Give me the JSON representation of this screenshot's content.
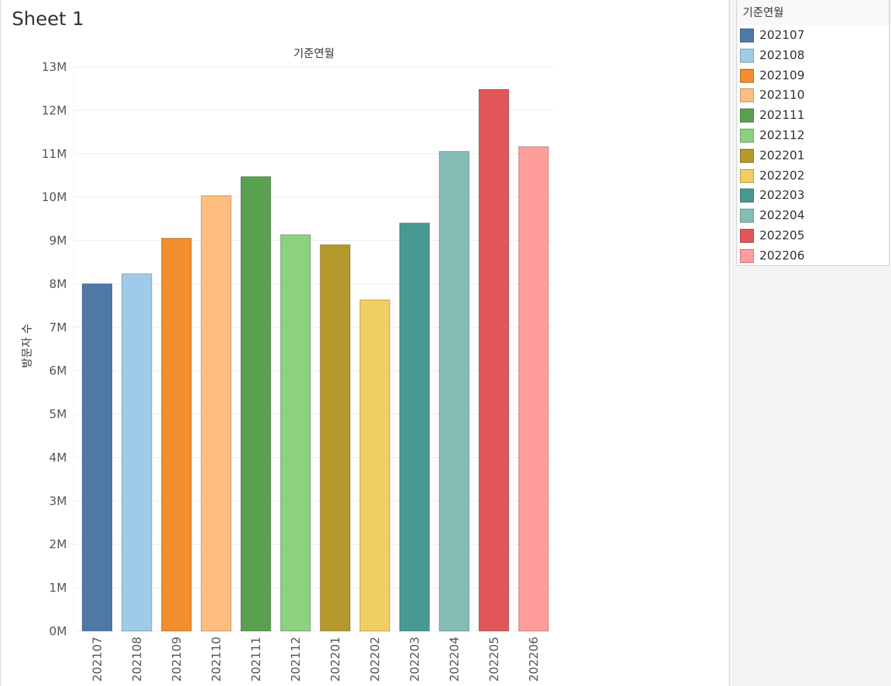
{
  "sheet": {
    "title": "Sheet 1"
  },
  "legend": {
    "title": "기준연월",
    "items": [
      {
        "label": "202107",
        "color": "#4e79a7"
      },
      {
        "label": "202108",
        "color": "#a0cbe8"
      },
      {
        "label": "202109",
        "color": "#f28e2b"
      },
      {
        "label": "202110",
        "color": "#ffbe7d"
      },
      {
        "label": "202111",
        "color": "#59a14f"
      },
      {
        "label": "202112",
        "color": "#8cd17d"
      },
      {
        "label": "202201",
        "color": "#b6992d"
      },
      {
        "label": "202202",
        "color": "#f1ce63"
      },
      {
        "label": "202203",
        "color": "#499894"
      },
      {
        "label": "202204",
        "color": "#86bcb6"
      },
      {
        "label": "202205",
        "color": "#e15759"
      },
      {
        "label": "202206",
        "color": "#ff9d9a"
      }
    ]
  },
  "chart_data": {
    "type": "bar",
    "title": "기준연월",
    "xlabel": "",
    "ylabel": "방문자 수",
    "categories": [
      "202107",
      "202108",
      "202109",
      "202110",
      "202111",
      "202112",
      "202201",
      "202202",
      "202203",
      "202204",
      "202205",
      "202206"
    ],
    "values": [
      8000000,
      8230000,
      9050000,
      10030000,
      10470000,
      9130000,
      8900000,
      7630000,
      9400000,
      11050000,
      12480000,
      11160000
    ],
    "colors": [
      "#4e79a7",
      "#a0cbe8",
      "#f28e2b",
      "#ffbe7d",
      "#59a14f",
      "#8cd17d",
      "#b6992d",
      "#f1ce63",
      "#499894",
      "#86bcb6",
      "#e15759",
      "#ff9d9a"
    ],
    "ylim": [
      0,
      13000000
    ],
    "yticks": [
      0,
      1000000,
      2000000,
      3000000,
      4000000,
      5000000,
      6000000,
      7000000,
      8000000,
      9000000,
      10000000,
      11000000,
      12000000,
      13000000
    ],
    "ytick_labels": [
      "0M",
      "1M",
      "2M",
      "3M",
      "4M",
      "5M",
      "6M",
      "7M",
      "8M",
      "9M",
      "10M",
      "11M",
      "12M",
      "13M"
    ],
    "grid": true,
    "legend": "right"
  }
}
